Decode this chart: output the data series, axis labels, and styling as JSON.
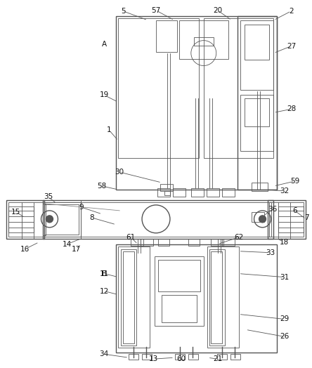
{
  "background": "#ffffff",
  "line_color": "#555555",
  "line_width": 1.0,
  "thin_line": 0.6,
  "fig_width": 4.44,
  "fig_height": 5.24,
  "dpi": 100
}
